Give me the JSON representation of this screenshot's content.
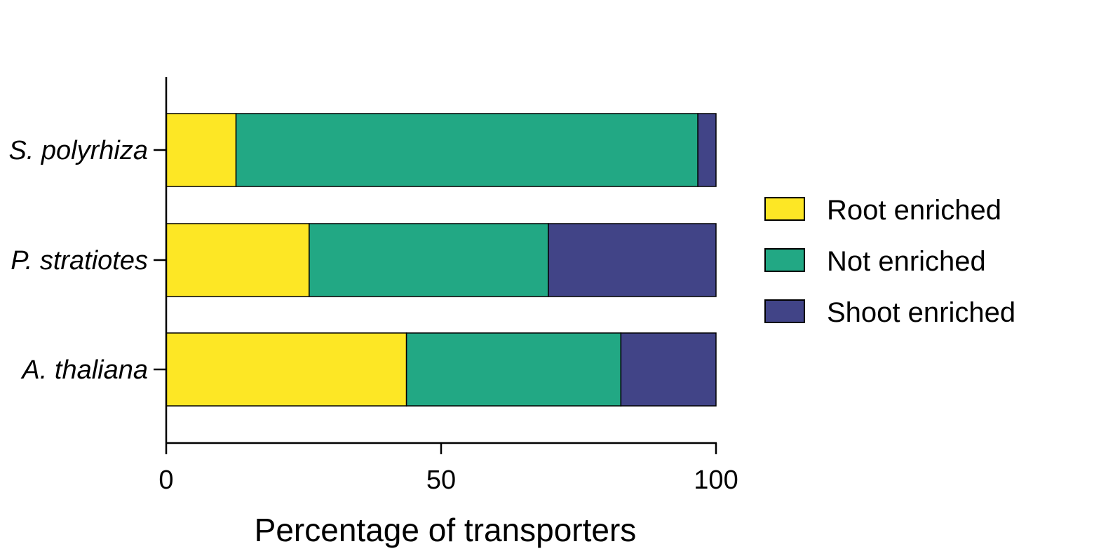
{
  "chart_data": {
    "type": "bar",
    "orientation": "horizontal",
    "stacked": true,
    "categories": [
      "S. polyrhiza",
      "P. stratiotes",
      "A. thaliana"
    ],
    "series": [
      {
        "name": "Root enriched",
        "color": "#fde725",
        "values": [
          12.7,
          26.0,
          43.7
        ]
      },
      {
        "name": "Not enriched",
        "color": "#22a884",
        "values": [
          84.0,
          43.5,
          39.0
        ]
      },
      {
        "name": "Shoot enriched",
        "color": "#414487",
        "values": [
          3.3,
          30.5,
          17.3
        ]
      }
    ],
    "xlabel": "Percentage of transporters",
    "xlim": [
      0,
      100
    ],
    "xticks": [
      0,
      50,
      100
    ],
    "grid": false,
    "legend_position": "right"
  }
}
